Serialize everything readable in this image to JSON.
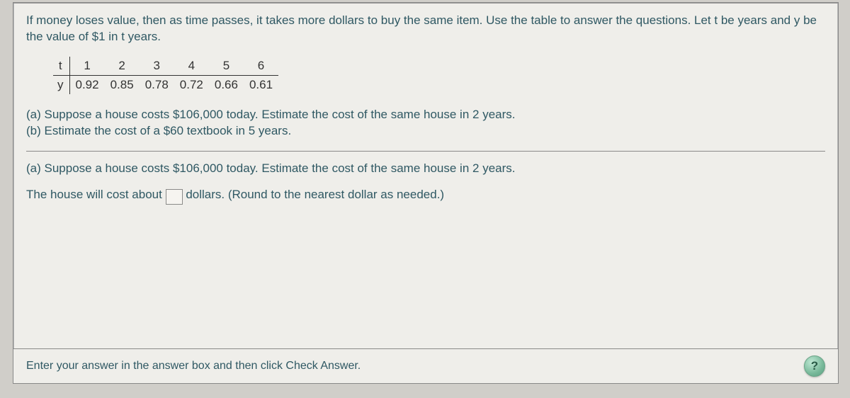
{
  "intro": "If money loses value, then as time passes, it takes more dollars to buy the same item. Use the table to answer the questions. Let t be years and y be the value of $1 in t years.",
  "table": {
    "row_headers": [
      "t",
      "y"
    ],
    "t_values": [
      "1",
      "2",
      "3",
      "4",
      "5",
      "6"
    ],
    "y_values": [
      "0.92",
      "0.85",
      "0.78",
      "0.72",
      "0.66",
      "0.61"
    ]
  },
  "questions": {
    "a": "(a) Suppose a house costs $106,000 today. Estimate the cost of the same house in 2 years.",
    "b": "(b) Estimate the cost of a $60 textbook in 5 years."
  },
  "current_part": "(a) Suppose a house costs $106,000 today. Estimate the cost of the same house in 2 years.",
  "answer": {
    "prefix": "The house will cost about",
    "value": "",
    "suffix": "dollars. (Round to the nearest dollar as needed.)"
  },
  "footer": {
    "instruction": "Enter your answer in the answer box and then click Check Answer.",
    "help_label": "?"
  },
  "colors": {
    "panel_bg": "#efeeea",
    "page_bg": "#d0cec9",
    "text_main": "#2f5863",
    "text_table": "#333333",
    "rule": "#8a8a88",
    "help_bg": "#78b99a"
  }
}
